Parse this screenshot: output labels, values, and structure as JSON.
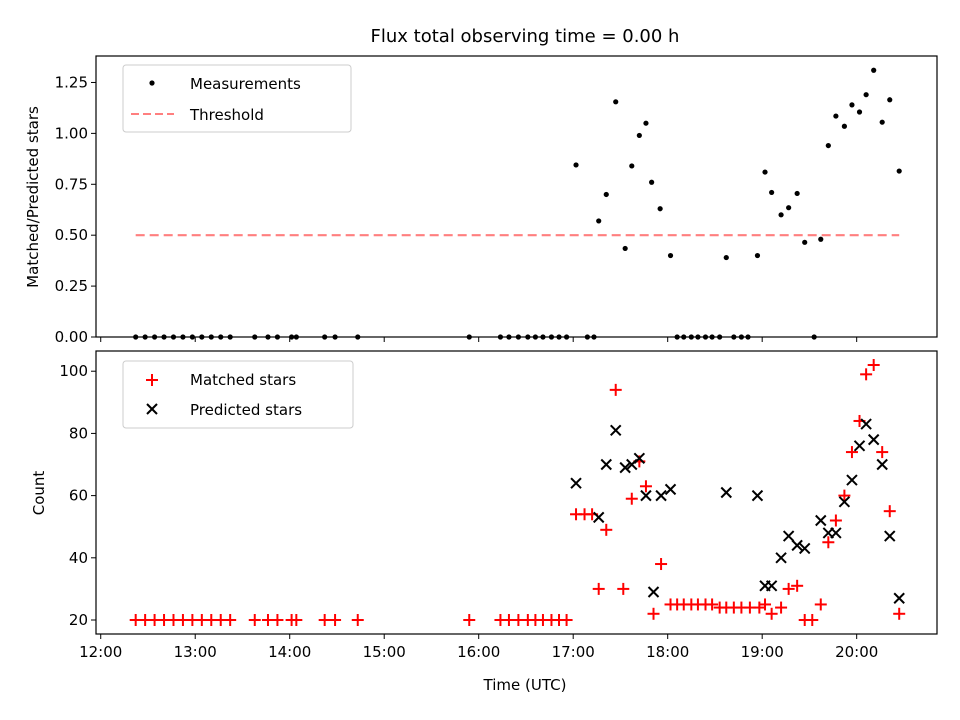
{
  "figure": {
    "title": "Flux total observing time = 0.00 h"
  },
  "chart_data": [
    {
      "type": "scatter",
      "panel": "top",
      "ylabel": "Matched/Predicted stars",
      "xlabel": "",
      "xlim": [
        11.95,
        20.85
      ],
      "ylim": [
        0,
        1.38
      ],
      "yticks": [
        0.0,
        0.25,
        0.5,
        0.75,
        1.0,
        1.25
      ],
      "ytick_labels": [
        "0.00",
        "0.25",
        "0.50",
        "0.75",
        "1.00",
        "1.25"
      ],
      "xticks": [
        12,
        13,
        14,
        15,
        16,
        17,
        18,
        19,
        20
      ],
      "xtick_labels_shown": false,
      "legend_position": "top-left",
      "grid": false,
      "series": [
        {
          "name": "Measurements",
          "style": "dot",
          "color": "#000000",
          "points": [
            [
              12.37,
              0
            ],
            [
              12.47,
              0
            ],
            [
              12.57,
              0
            ],
            [
              12.67,
              0
            ],
            [
              12.77,
              0
            ],
            [
              12.87,
              0
            ],
            [
              12.97,
              0
            ],
            [
              13.07,
              0
            ],
            [
              13.17,
              0
            ],
            [
              13.27,
              0
            ],
            [
              13.37,
              0
            ],
            [
              13.63,
              0
            ],
            [
              13.77,
              0
            ],
            [
              13.87,
              0
            ],
            [
              14.02,
              0
            ],
            [
              14.07,
              0
            ],
            [
              14.37,
              0
            ],
            [
              14.48,
              0
            ],
            [
              14.72,
              0
            ],
            [
              15.9,
              0
            ],
            [
              16.23,
              0
            ],
            [
              16.32,
              0
            ],
            [
              16.42,
              0
            ],
            [
              16.52,
              0
            ],
            [
              16.6,
              0
            ],
            [
              16.68,
              0
            ],
            [
              16.77,
              0
            ],
            [
              16.85,
              0
            ],
            [
              16.93,
              0
            ],
            [
              17.03,
              0.845
            ],
            [
              17.15,
              0
            ],
            [
              17.22,
              0
            ],
            [
              17.27,
              0.57
            ],
            [
              17.35,
              0.7
            ],
            [
              17.45,
              1.155
            ],
            [
              17.55,
              0.435
            ],
            [
              17.62,
              0.84
            ],
            [
              17.7,
              0.99
            ],
            [
              17.77,
              1.05
            ],
            [
              17.83,
              0.76
            ],
            [
              17.92,
              0.63
            ],
            [
              18.03,
              0.4
            ],
            [
              18.1,
              0
            ],
            [
              18.17,
              0
            ],
            [
              18.25,
              0
            ],
            [
              18.32,
              0
            ],
            [
              18.4,
              0
            ],
            [
              18.47,
              0
            ],
            [
              18.55,
              0
            ],
            [
              18.62,
              0.39
            ],
            [
              18.7,
              0
            ],
            [
              18.78,
              0
            ],
            [
              18.85,
              0
            ],
            [
              18.95,
              0.4
            ],
            [
              19.03,
              0.81
            ],
            [
              19.1,
              0.71
            ],
            [
              19.2,
              0.6
            ],
            [
              19.28,
              0.635
            ],
            [
              19.37,
              0.705
            ],
            [
              19.45,
              0.465
            ],
            [
              19.55,
              0
            ],
            [
              19.62,
              0.48
            ],
            [
              19.7,
              0.94
            ],
            [
              19.78,
              1.085
            ],
            [
              19.87,
              1.035
            ],
            [
              19.95,
              1.14
            ],
            [
              20.03,
              1.105
            ],
            [
              20.1,
              1.19
            ],
            [
              20.18,
              1.31
            ],
            [
              20.27,
              1.055
            ],
            [
              20.35,
              1.165
            ],
            [
              20.45,
              0.815
            ]
          ]
        },
        {
          "name": "Threshold",
          "style": "dashed-line",
          "color": "#ff7f7f",
          "points": [
            [
              12.37,
              0.5
            ],
            [
              20.45,
              0.5
            ]
          ]
        }
      ]
    },
    {
      "type": "scatter",
      "panel": "bottom",
      "ylabel": "Count",
      "xlabel": "Time (UTC)",
      "xlim": [
        11.95,
        20.85
      ],
      "ylim": [
        15.5,
        106.5
      ],
      "yticks": [
        20,
        40,
        60,
        80,
        100
      ],
      "ytick_labels": [
        "20",
        "40",
        "60",
        "80",
        "100"
      ],
      "xticks": [
        12,
        13,
        14,
        15,
        16,
        17,
        18,
        19,
        20
      ],
      "xtick_labels": [
        "12:00",
        "13:00",
        "14:00",
        "15:00",
        "16:00",
        "17:00",
        "18:00",
        "19:00",
        "20:00"
      ],
      "legend_position": "top-left",
      "grid": false,
      "series": [
        {
          "name": "Matched stars",
          "style": "plus",
          "color": "#ff0000",
          "points": [
            [
              12.37,
              20
            ],
            [
              12.47,
              20
            ],
            [
              12.57,
              20
            ],
            [
              12.67,
              20
            ],
            [
              12.77,
              20
            ],
            [
              12.87,
              20
            ],
            [
              12.97,
              20
            ],
            [
              13.07,
              20
            ],
            [
              13.17,
              20
            ],
            [
              13.27,
              20
            ],
            [
              13.37,
              20
            ],
            [
              13.63,
              20
            ],
            [
              13.77,
              20
            ],
            [
              13.87,
              20
            ],
            [
              14.02,
              20
            ],
            [
              14.07,
              20
            ],
            [
              14.37,
              20
            ],
            [
              14.48,
              20
            ],
            [
              14.72,
              20
            ],
            [
              15.9,
              20
            ],
            [
              16.23,
              20
            ],
            [
              16.32,
              20
            ],
            [
              16.42,
              20
            ],
            [
              16.52,
              20
            ],
            [
              16.6,
              20
            ],
            [
              16.68,
              20
            ],
            [
              16.77,
              20
            ],
            [
              16.85,
              20
            ],
            [
              16.93,
              20
            ],
            [
              17.03,
              54
            ],
            [
              17.12,
              54
            ],
            [
              17.2,
              54
            ],
            [
              17.27,
              30
            ],
            [
              17.35,
              49
            ],
            [
              17.45,
              94
            ],
            [
              17.53,
              30
            ],
            [
              17.62,
              59
            ],
            [
              17.7,
              71
            ],
            [
              17.77,
              63
            ],
            [
              17.85,
              22
            ],
            [
              17.93,
              38
            ],
            [
              18.03,
              25
            ],
            [
              18.1,
              25
            ],
            [
              18.17,
              25
            ],
            [
              18.25,
              25
            ],
            [
              18.32,
              25
            ],
            [
              18.4,
              25
            ],
            [
              18.47,
              25
            ],
            [
              18.55,
              24
            ],
            [
              18.62,
              24
            ],
            [
              18.7,
              24
            ],
            [
              18.78,
              24
            ],
            [
              18.87,
              24
            ],
            [
              18.97,
              24
            ],
            [
              19.03,
              25
            ],
            [
              19.1,
              22
            ],
            [
              19.2,
              24
            ],
            [
              19.28,
              30
            ],
            [
              19.37,
              31
            ],
            [
              19.45,
              20
            ],
            [
              19.53,
              20
            ],
            [
              19.62,
              25
            ],
            [
              19.7,
              45
            ],
            [
              19.78,
              52
            ],
            [
              19.87,
              60
            ],
            [
              19.95,
              74
            ],
            [
              20.03,
              84
            ],
            [
              20.1,
              99
            ],
            [
              20.18,
              102
            ],
            [
              20.27,
              74
            ],
            [
              20.35,
              55
            ],
            [
              20.45,
              22
            ]
          ]
        },
        {
          "name": "Predicted stars",
          "style": "x",
          "color": "#000000",
          "points": [
            [
              17.03,
              64
            ],
            [
              17.27,
              53
            ],
            [
              17.35,
              70
            ],
            [
              17.45,
              81
            ],
            [
              17.55,
              69
            ],
            [
              17.62,
              70
            ],
            [
              17.7,
              72
            ],
            [
              17.77,
              60
            ],
            [
              17.85,
              29
            ],
            [
              17.93,
              60
            ],
            [
              18.03,
              62
            ],
            [
              18.62,
              61
            ],
            [
              18.95,
              60
            ],
            [
              19.03,
              31
            ],
            [
              19.1,
              31
            ],
            [
              19.2,
              40
            ],
            [
              19.28,
              47
            ],
            [
              19.37,
              44
            ],
            [
              19.45,
              43
            ],
            [
              19.62,
              52
            ],
            [
              19.7,
              48
            ],
            [
              19.78,
              48
            ],
            [
              19.87,
              58
            ],
            [
              19.95,
              65
            ],
            [
              20.03,
              76
            ],
            [
              20.1,
              83
            ],
            [
              20.18,
              78
            ],
            [
              20.27,
              70
            ],
            [
              20.35,
              47
            ],
            [
              20.45,
              27
            ]
          ]
        }
      ]
    }
  ]
}
